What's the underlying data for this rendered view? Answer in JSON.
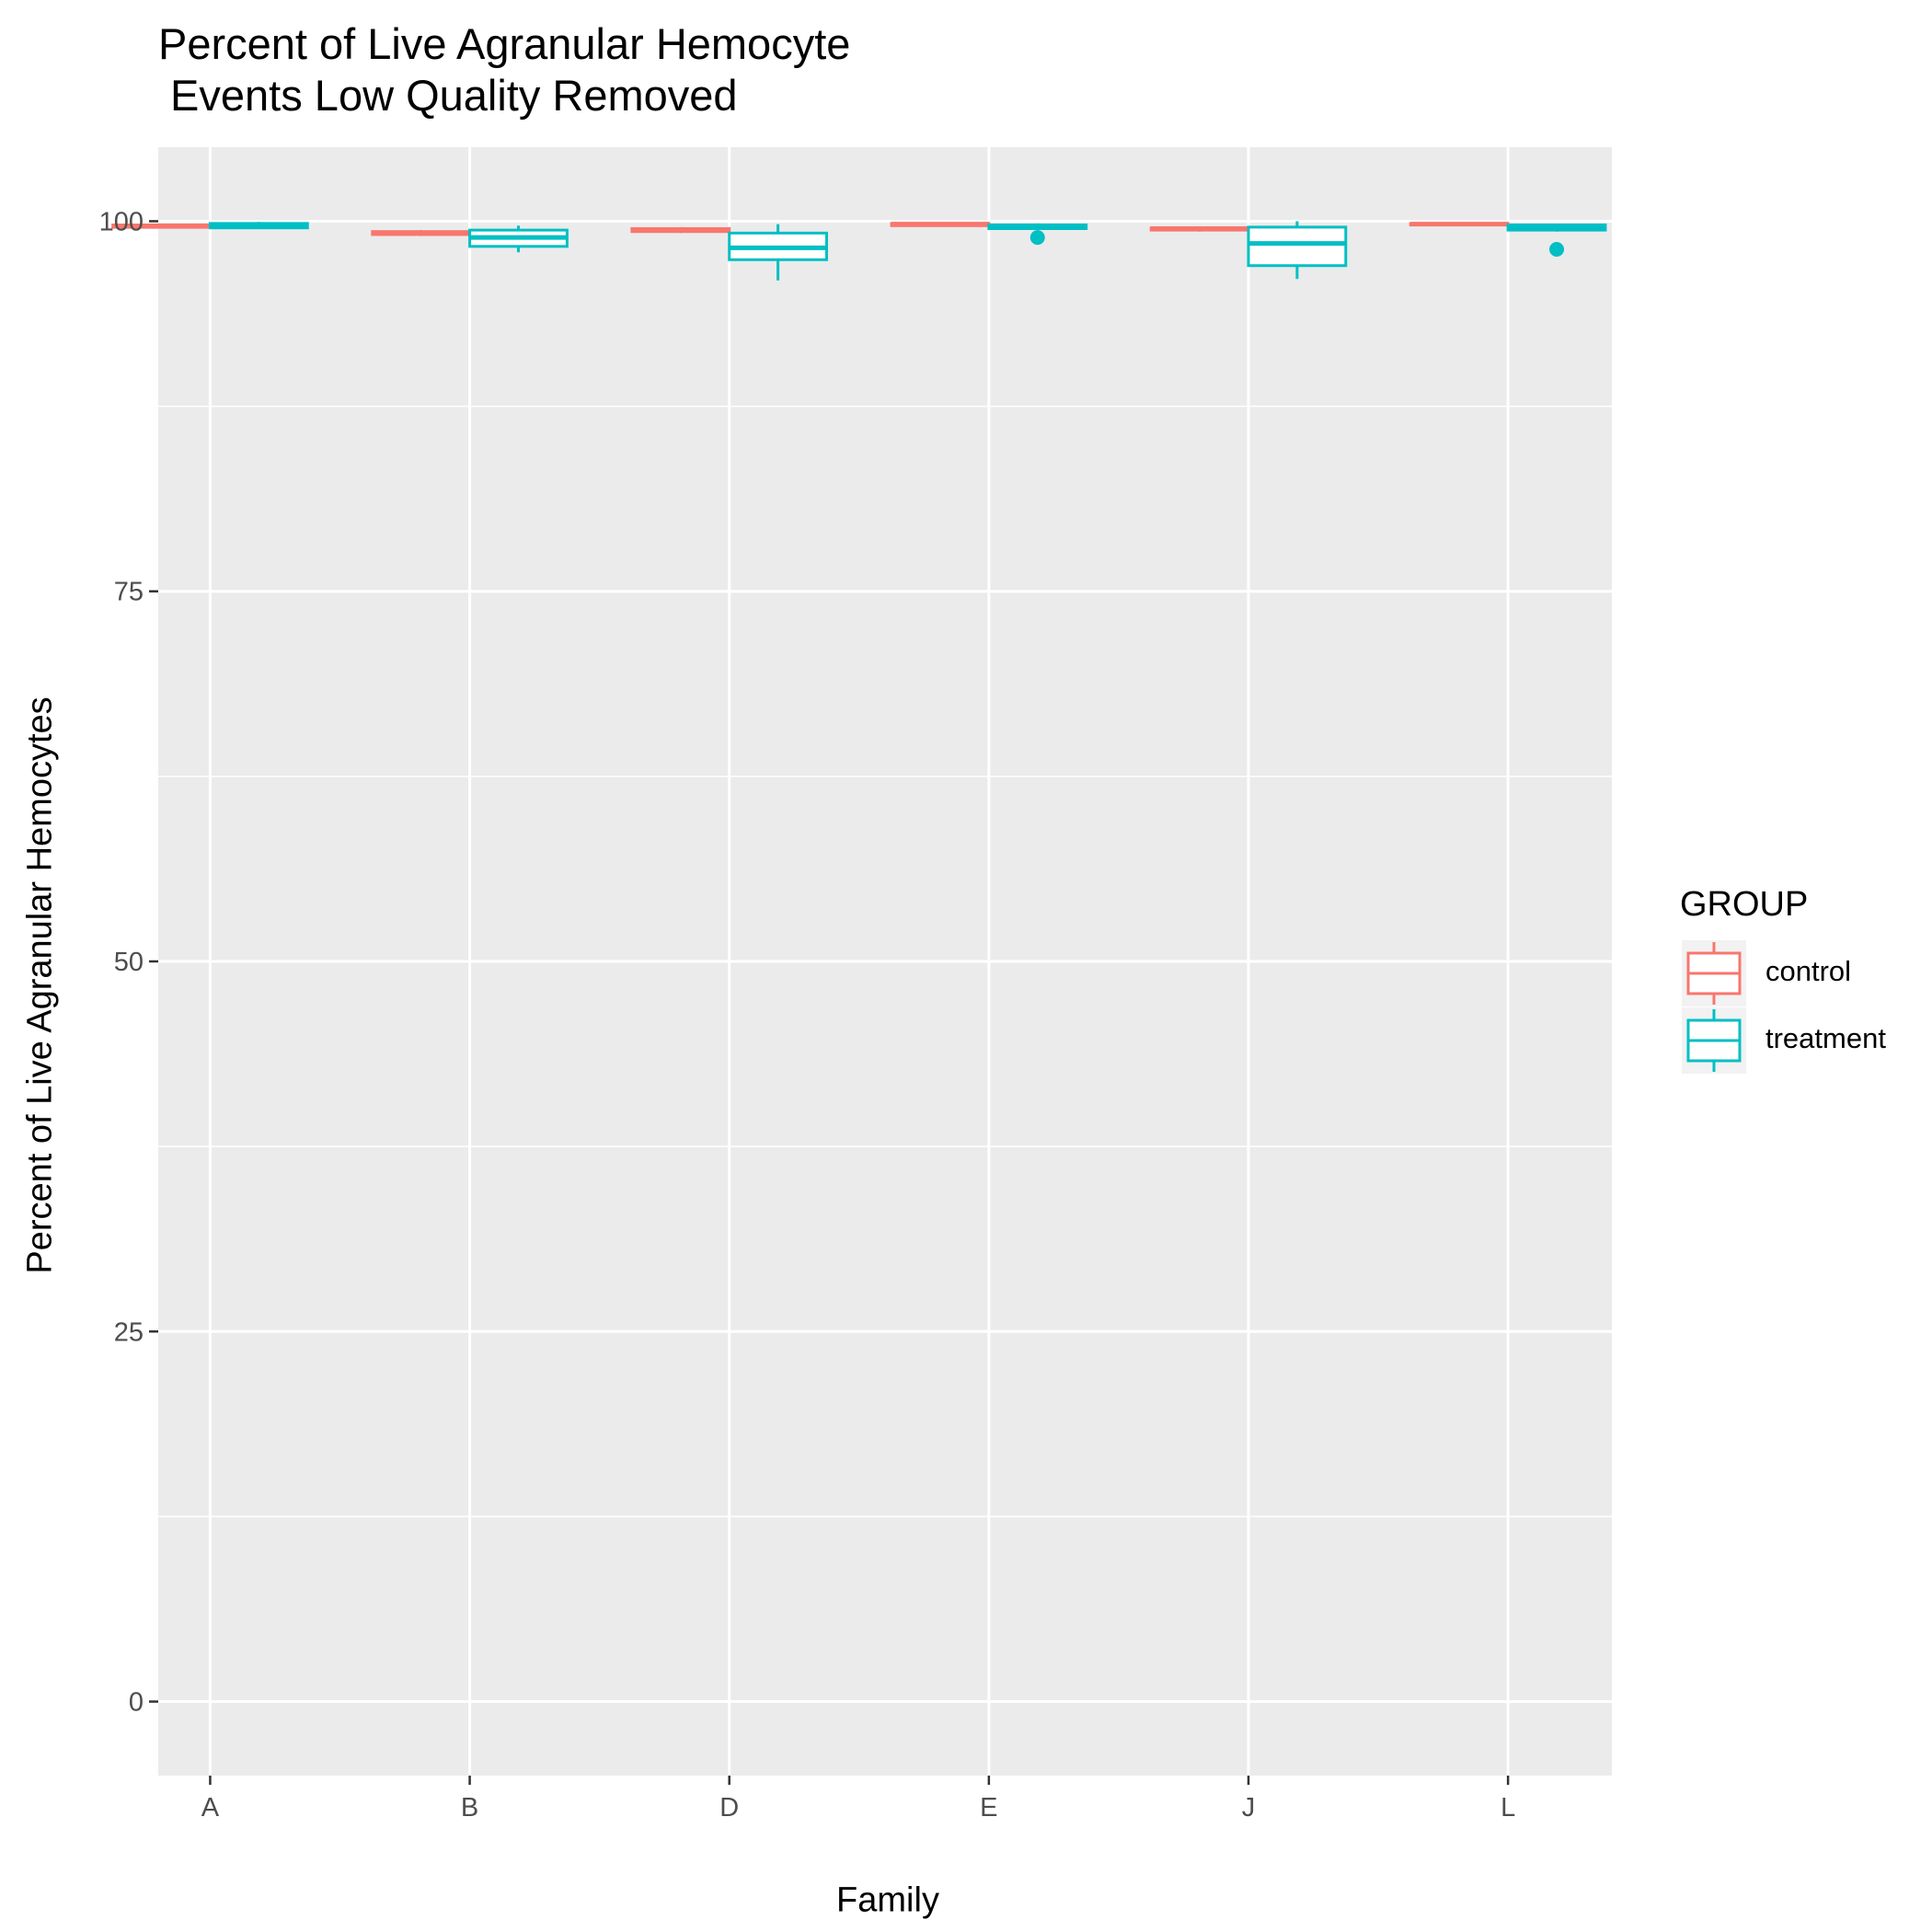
{
  "chart_data": {
    "type": "box",
    "title": "Percent of Live Agranular Hemocyte\n Events Low Quality Removed",
    "xlabel": "Family",
    "ylabel": "Percent of Live Agranular Hemocytes",
    "categories": [
      "A",
      "B",
      "D",
      "E",
      "J",
      "L"
    ],
    "ylim": [
      -5,
      105
    ],
    "yticks": [
      0,
      25,
      50,
      75,
      100
    ],
    "grid": true,
    "legend": {
      "title": "GROUP",
      "placement": "right",
      "entries": [
        "control",
        "treatment"
      ]
    },
    "series": [
      {
        "name": "control",
        "color": "#F8766D",
        "boxes": [
          {
            "category": "A",
            "min": 99.55,
            "q1": 99.6,
            "median": 99.65,
            "q3": 99.75,
            "max": 99.8,
            "outliers": []
          },
          {
            "category": "B",
            "min": 99.0,
            "q1": 99.1,
            "median": 99.2,
            "q3": 99.3,
            "max": 99.4,
            "outliers": []
          },
          {
            "category": "D",
            "min": 99.2,
            "q1": 99.3,
            "median": 99.4,
            "q3": 99.5,
            "max": 99.6,
            "outliers": []
          },
          {
            "category": "E",
            "min": 99.65,
            "q1": 99.7,
            "median": 99.8,
            "q3": 99.85,
            "max": 99.9,
            "outliers": []
          },
          {
            "category": "J",
            "min": 99.3,
            "q1": 99.4,
            "median": 99.5,
            "q3": 99.55,
            "max": 99.6,
            "outliers": []
          },
          {
            "category": "L",
            "min": 99.7,
            "q1": 99.75,
            "median": 99.8,
            "q3": 99.85,
            "max": 99.9,
            "outliers": []
          }
        ]
      },
      {
        "name": "treatment",
        "color": "#00BFC4",
        "boxes": [
          {
            "category": "A",
            "min": 99.5,
            "q1": 99.55,
            "median": 99.7,
            "q3": 99.85,
            "max": 99.95,
            "outliers": []
          },
          {
            "category": "B",
            "min": 97.9,
            "q1": 98.3,
            "median": 98.9,
            "q3": 99.4,
            "max": 99.7,
            "outliers": []
          },
          {
            "category": "D",
            "min": 96.0,
            "q1": 97.4,
            "median": 98.2,
            "q3": 99.2,
            "max": 99.8,
            "outliers": []
          },
          {
            "category": "E",
            "min": 99.4,
            "q1": 99.5,
            "median": 99.6,
            "q3": 99.75,
            "max": 99.85,
            "outliers": [
              98.9
            ]
          },
          {
            "category": "J",
            "min": 96.1,
            "q1": 97.0,
            "median": 98.5,
            "q3": 99.6,
            "max": 100.0,
            "outliers": []
          },
          {
            "category": "L",
            "min": 99.3,
            "q1": 99.4,
            "median": 99.55,
            "q3": 99.75,
            "max": 99.8,
            "outliers": [
              98.1
            ]
          }
        ]
      }
    ]
  }
}
